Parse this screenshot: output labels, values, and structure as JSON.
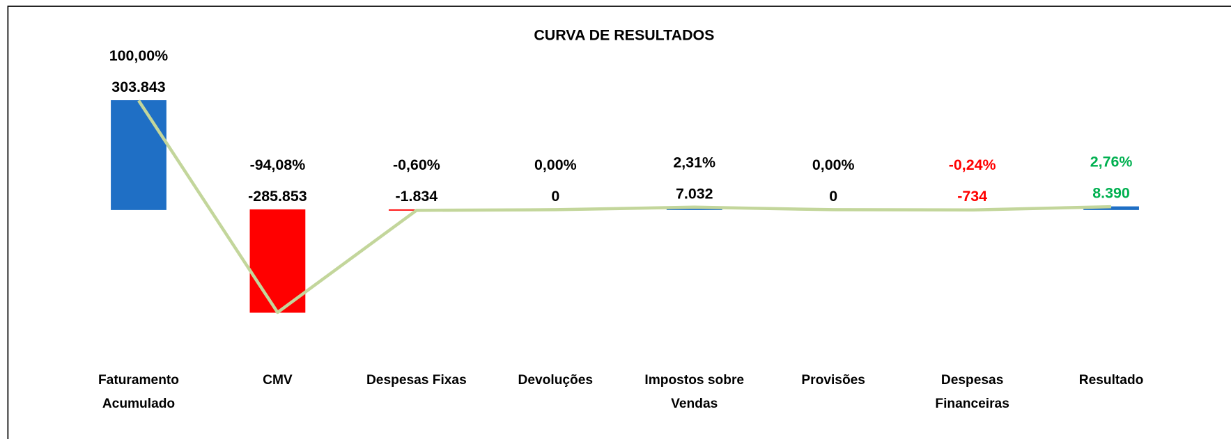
{
  "chart_data": {
    "type": "bar",
    "title": "CURVA DE RESULTADOS",
    "categories": [
      "Faturamento Acumulado",
      "CMV",
      "Despesas Fixas",
      "Devoluções",
      "Impostos sobre Vendas",
      "Provisões",
      "Despesas Financeiras",
      "Resultado"
    ],
    "values": [
      303843,
      -285853,
      -1834,
      0,
      7032,
      0,
      -734,
      8390
    ],
    "value_labels": [
      "303.843",
      "-285.853",
      "-1.834",
      "0",
      "7.032",
      "0",
      "-734",
      "8.390"
    ],
    "percent_labels": [
      "100,00%",
      "-94,08%",
      "-0,60%",
      "0,00%",
      "2,31%",
      "0,00%",
      "-0,24%",
      "2,76%"
    ],
    "colors": [
      "#1f6fc5",
      "#ff0000",
      "#ff0000",
      "#1f6fc5",
      "#1f6fc5",
      "#1f6fc5",
      "#ff0000",
      "#1f6fc5"
    ],
    "label_colors": [
      "#000000",
      "#000000",
      "#000000",
      "#000000",
      "#000000",
      "#000000",
      "#ff0000",
      "#00b050"
    ],
    "line_color": "#c3d69b",
    "ylim": [
      -420000,
      540000
    ]
  }
}
